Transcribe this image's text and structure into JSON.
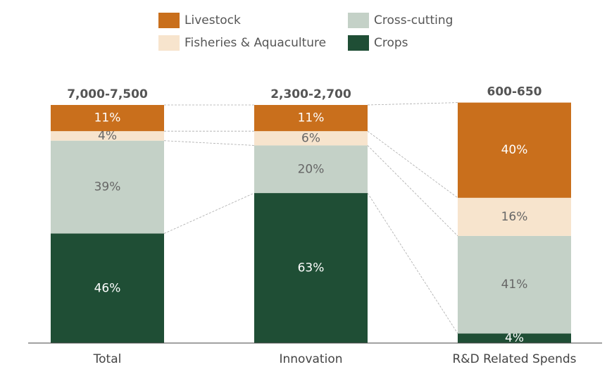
{
  "chart_data": {
    "type": "stacked_bar",
    "categories": [
      "Total",
      "Innovation",
      "R&D Related Spends"
    ],
    "bar_totals": [
      "7,000-7,500",
      "2,300-2,700",
      "600-650"
    ],
    "series": [
      {
        "name": "Crops",
        "color": "#1f4e35",
        "values": [
          46,
          63,
          4
        ],
        "value_labels": [
          "46%",
          "63%",
          "4%"
        ]
      },
      {
        "name": "Cross-cutting",
        "color": "#c4d1c7",
        "values": [
          39,
          20,
          41
        ],
        "value_labels": [
          "39%",
          "20%",
          "41%"
        ]
      },
      {
        "name": "Fisheries & Aquaculture",
        "color": "#f7e4cd",
        "values": [
          4,
          6,
          16
        ],
        "value_labels": [
          "4%",
          "6%",
          "16%"
        ]
      },
      {
        "name": "Livestock",
        "color": "#c96f1c",
        "values": [
          11,
          11,
          40
        ],
        "value_labels": [
          "11%",
          "11%",
          "40%"
        ]
      }
    ]
  }
}
